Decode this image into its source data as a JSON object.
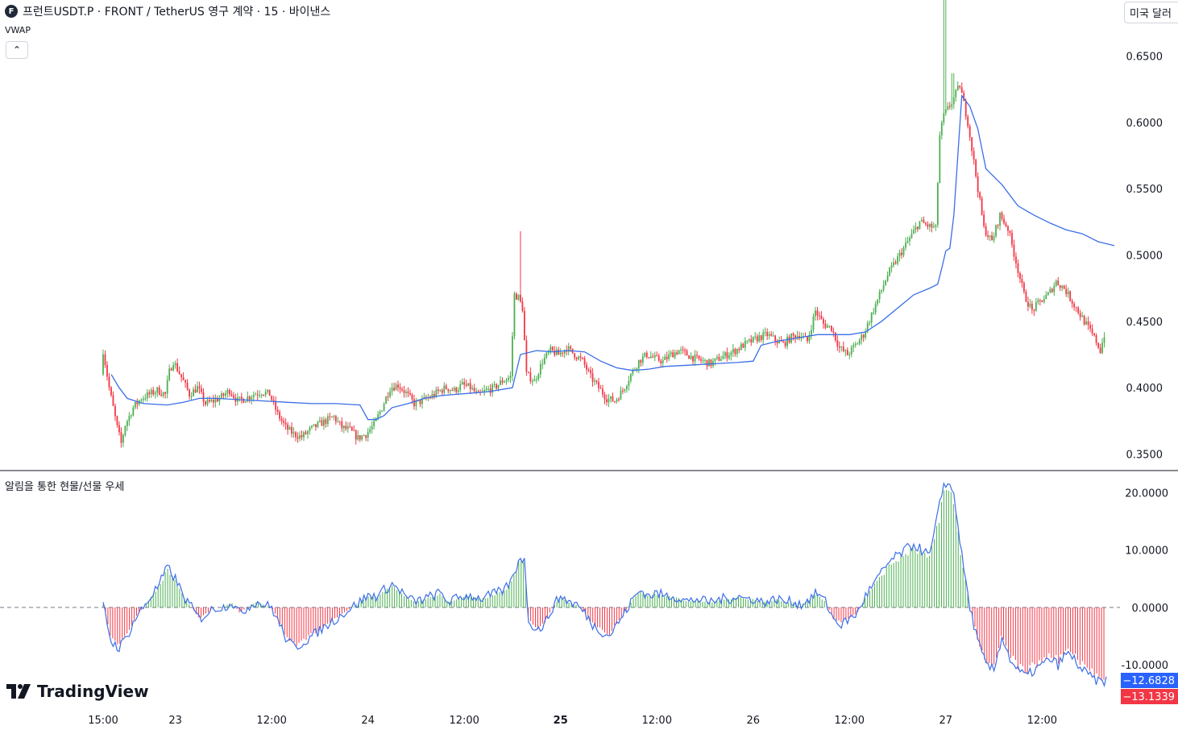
{
  "header": {
    "symbol_title": "프런트USDT.P · FRONT / TetherUS 영구 계약 · 15 · 바이낸스",
    "indicator": "VWAP",
    "currency_button": "미국 달러",
    "collapse_icon": "chevron-up-icon",
    "logo_icon": "front-coin-icon"
  },
  "pane2": {
    "title": "알림을 통한 현물/선물 우세"
  },
  "branding": {
    "logo_text": "TradingView"
  },
  "colors": {
    "up": "#4caf50",
    "down": "#f23645",
    "vwap": "#3b6ee8",
    "hist_up": "#4caf50",
    "hist_down": "#f23645",
    "badge_blue": "#2962ff",
    "badge_red": "#f23645"
  },
  "chart_data": [
    {
      "type": "candlestick",
      "title": "FRONTUSDT.P 15",
      "y_ticks": [
        "0.3500",
        "0.4000",
        "0.4500",
        "0.5000",
        "0.5500",
        "0.6000",
        "0.6500"
      ],
      "ylim": [
        0.34,
        0.68
      ],
      "x_ticks": [
        "15:00",
        "23",
        "12:00",
        "24",
        "12:00",
        "25",
        "12:00",
        "26",
        "12:00",
        "27",
        "12:00"
      ],
      "x_tick_times": [
        0,
        9,
        21,
        33,
        45,
        57,
        69,
        81,
        93,
        105,
        117
      ],
      "xlim": [
        0,
        122
      ],
      "price_path": [
        [
          0,
          0.41
        ],
        [
          0.2,
          0.43
        ],
        [
          1,
          0.4
        ],
        [
          2,
          0.37
        ],
        [
          2.5,
          0.358
        ],
        [
          3,
          0.372
        ],
        [
          4,
          0.385
        ],
        [
          5,
          0.392
        ],
        [
          6,
          0.395
        ],
        [
          7,
          0.398
        ],
        [
          8,
          0.395
        ],
        [
          8.5,
          0.412
        ],
        [
          9,
          0.42
        ],
        [
          10,
          0.408
        ],
        [
          11,
          0.395
        ],
        [
          12,
          0.4
        ],
        [
          13,
          0.388
        ],
        [
          14,
          0.39
        ],
        [
          15,
          0.393
        ],
        [
          16,
          0.398
        ],
        [
          17,
          0.39
        ],
        [
          18,
          0.392
        ],
        [
          19,
          0.395
        ],
        [
          20,
          0.397
        ],
        [
          21,
          0.395
        ],
        [
          22,
          0.38
        ],
        [
          23,
          0.37
        ],
        [
          24,
          0.365
        ],
        [
          25,
          0.363
        ],
        [
          26,
          0.368
        ],
        [
          27,
          0.372
        ],
        [
          28,
          0.375
        ],
        [
          29,
          0.378
        ],
        [
          30,
          0.37
        ],
        [
          31,
          0.368
        ],
        [
          32,
          0.362
        ],
        [
          33,
          0.365
        ],
        [
          34,
          0.372
        ],
        [
          35,
          0.385
        ],
        [
          36,
          0.4
        ],
        [
          37,
          0.402
        ],
        [
          38,
          0.396
        ],
        [
          39,
          0.388
        ],
        [
          40,
          0.39
        ],
        [
          41,
          0.393
        ],
        [
          42,
          0.397
        ],
        [
          43,
          0.4
        ],
        [
          44,
          0.398
        ],
        [
          45,
          0.402
        ],
        [
          46,
          0.4
        ],
        [
          47,
          0.394
        ],
        [
          48,
          0.398
        ],
        [
          49,
          0.4
        ],
        [
          50,
          0.405
        ],
        [
          51,
          0.408
        ],
        [
          51.5,
          0.47
        ],
        [
          52,
          0.468
        ],
        [
          52.5,
          0.46
        ],
        [
          53,
          0.41
        ],
        [
          54,
          0.405
        ],
        [
          55,
          0.42
        ],
        [
          56,
          0.428
        ],
        [
          57,
          0.425
        ],
        [
          58,
          0.43
        ],
        [
          59,
          0.425
        ],
        [
          60,
          0.42
        ],
        [
          61,
          0.408
        ],
        [
          62,
          0.4
        ],
        [
          63,
          0.392
        ],
        [
          64,
          0.39
        ],
        [
          65,
          0.398
        ],
        [
          66,
          0.41
        ],
        [
          67,
          0.42
        ],
        [
          68,
          0.425
        ],
        [
          69,
          0.422
        ],
        [
          70,
          0.42
        ],
        [
          71,
          0.425
        ],
        [
          72,
          0.428
        ],
        [
          73,
          0.425
        ],
        [
          74,
          0.422
        ],
        [
          75,
          0.42
        ],
        [
          76,
          0.418
        ],
        [
          77,
          0.422
        ],
        [
          78,
          0.425
        ],
        [
          79,
          0.428
        ],
        [
          80,
          0.432
        ],
        [
          81,
          0.435
        ],
        [
          82,
          0.438
        ],
        [
          83,
          0.44
        ],
        [
          84,
          0.436
        ],
        [
          85,
          0.433
        ],
        [
          86,
          0.438
        ],
        [
          87,
          0.44
        ],
        [
          88,
          0.435
        ],
        [
          89,
          0.458
        ],
        [
          90,
          0.448
        ],
        [
          91,
          0.445
        ],
        [
          92,
          0.43
        ],
        [
          93,
          0.425
        ],
        [
          94,
          0.432
        ],
        [
          95,
          0.44
        ],
        [
          96,
          0.455
        ],
        [
          97,
          0.47
        ],
        [
          98,
          0.485
        ],
        [
          99,
          0.495
        ],
        [
          100,
          0.505
        ],
        [
          101,
          0.515
        ],
        [
          102,
          0.525
        ],
        [
          103,
          0.522
        ],
        [
          104,
          0.52
        ],
        [
          104.5,
          0.59
        ],
        [
          105,
          0.605
        ],
        [
          106,
          0.615
        ],
        [
          107,
          0.628
        ],
        [
          108,
          0.6
        ],
        [
          109,
          0.56
        ],
        [
          110,
          0.52
        ],
        [
          111,
          0.51
        ],
        [
          112,
          0.53
        ],
        [
          113,
          0.52
        ],
        [
          114,
          0.495
        ],
        [
          115,
          0.47
        ],
        [
          116,
          0.458
        ],
        [
          117,
          0.465
        ],
        [
          118,
          0.47
        ],
        [
          119,
          0.48
        ],
        [
          120,
          0.475
        ],
        [
          121,
          0.465
        ],
        [
          122,
          0.455
        ],
        [
          123,
          0.445
        ],
        [
          124,
          0.435
        ],
        [
          124.5,
          0.428
        ],
        [
          125,
          0.44
        ]
      ],
      "spikes": [
        {
          "t": 52,
          "high": 0.518
        },
        {
          "t": 104.8,
          "high": 0.701
        },
        {
          "t": 105.8,
          "high": 0.637
        }
      ],
      "series": [
        {
          "name": "VWAP",
          "points": [
            [
              1,
              0.41
            ],
            [
              2,
              0.4
            ],
            [
              3,
              0.392
            ],
            [
              5,
              0.388
            ],
            [
              8,
              0.387
            ],
            [
              10,
              0.389
            ],
            [
              12,
              0.392
            ],
            [
              14,
              0.392
            ],
            [
              17,
              0.391
            ],
            [
              20,
              0.39
            ],
            [
              23,
              0.389
            ],
            [
              26,
              0.388
            ],
            [
              29,
              0.388
            ],
            [
              32,
              0.387
            ],
            [
              33,
              0.376
            ],
            [
              34,
              0.376
            ],
            [
              35,
              0.379
            ],
            [
              36,
              0.385
            ],
            [
              38,
              0.388
            ],
            [
              40,
              0.392
            ],
            [
              42,
              0.394
            ],
            [
              44,
              0.395
            ],
            [
              46,
              0.396
            ],
            [
              48,
              0.397
            ],
            [
              50,
              0.399
            ],
            [
              51,
              0.4
            ],
            [
              52,
              0.425
            ],
            [
              54,
              0.428
            ],
            [
              56,
              0.427
            ],
            [
              58,
              0.428
            ],
            [
              60,
              0.427
            ],
            [
              62,
              0.42
            ],
            [
              64,
              0.415
            ],
            [
              66,
              0.413
            ],
            [
              68,
              0.414
            ],
            [
              70,
              0.416
            ],
            [
              73,
              0.417
            ],
            [
              76,
              0.418
            ],
            [
              79,
              0.419
            ],
            [
              81,
              0.42
            ],
            [
              82,
              0.432
            ],
            [
              84,
              0.435
            ],
            [
              87,
              0.438
            ],
            [
              89,
              0.44
            ],
            [
              92,
              0.44
            ],
            [
              93,
              0.44
            ],
            [
              95,
              0.442
            ],
            [
              97,
              0.45
            ],
            [
              99,
              0.46
            ],
            [
              101,
              0.47
            ],
            [
              103,
              0.475
            ],
            [
              104,
              0.478
            ],
            [
              104.5,
              0.49
            ],
            [
              105,
              0.503
            ],
            [
              105.5,
              0.505
            ],
            [
              106,
              0.53
            ],
            [
              107,
              0.62
            ],
            [
              108,
              0.612
            ],
            [
              109,
              0.595
            ],
            [
              110,
              0.565
            ],
            [
              112,
              0.553
            ],
            [
              114,
              0.537
            ],
            [
              116,
              0.53
            ],
            [
              118,
              0.524
            ],
            [
              120,
              0.519
            ],
            [
              122,
              0.516
            ],
            [
              124,
              0.51
            ],
            [
              126,
              0.507
            ]
          ]
        }
      ]
    },
    {
      "type": "histogram",
      "title": "알림을 통한 현물/선물 우세",
      "y_ticks": [
        "20.0000",
        "10.0000",
        "0.0000",
        "-10.0000"
      ],
      "ylim": [
        -17,
        23
      ],
      "zero_line": 0,
      "path": [
        [
          0,
          0.5
        ],
        [
          1,
          -6
        ],
        [
          2,
          -7
        ],
        [
          3,
          -5
        ],
        [
          4,
          -2
        ],
        [
          5,
          0
        ],
        [
          6,
          2
        ],
        [
          7,
          4
        ],
        [
          8,
          7
        ],
        [
          9,
          5
        ],
        [
          10,
          2
        ],
        [
          11,
          0
        ],
        [
          12,
          -2
        ],
        [
          13,
          -1
        ],
        [
          14,
          0
        ],
        [
          15,
          0
        ],
        [
          16,
          1
        ],
        [
          17,
          -1
        ],
        [
          18,
          0
        ],
        [
          19,
          1
        ],
        [
          20,
          0.5
        ],
        [
          21,
          0
        ],
        [
          22,
          -3
        ],
        [
          23,
          -6
        ],
        [
          24,
          -7
        ],
        [
          25,
          -6
        ],
        [
          26,
          -5
        ],
        [
          27,
          -4
        ],
        [
          28,
          -3
        ],
        [
          29,
          -2
        ],
        [
          30,
          -1
        ],
        [
          31,
          0
        ],
        [
          32,
          1
        ],
        [
          33,
          2
        ],
        [
          34,
          2
        ],
        [
          35,
          3
        ],
        [
          36,
          4
        ],
        [
          37,
          3
        ],
        [
          38,
          1.5
        ],
        [
          39,
          1
        ],
        [
          40,
          1.5
        ],
        [
          41,
          2
        ],
        [
          42,
          2.5
        ],
        [
          43,
          1
        ],
        [
          44,
          1.5
        ],
        [
          45,
          2
        ],
        [
          46,
          2
        ],
        [
          47,
          1.5
        ],
        [
          48,
          2
        ],
        [
          49,
          2.5
        ],
        [
          50,
          3
        ],
        [
          51,
          5
        ],
        [
          52,
          9
        ],
        [
          52.5,
          8
        ],
        [
          53,
          -2
        ],
        [
          54,
          -4
        ],
        [
          55,
          -3
        ],
        [
          56,
          0
        ],
        [
          57,
          2
        ],
        [
          58,
          1
        ],
        [
          59,
          0.5
        ],
        [
          60,
          -1
        ],
        [
          61,
          -3
        ],
        [
          62,
          -4
        ],
        [
          63,
          -5
        ],
        [
          64,
          -3
        ],
        [
          65,
          -1
        ],
        [
          66,
          1.5
        ],
        [
          67,
          3
        ],
        [
          68,
          2
        ],
        [
          69,
          2.5
        ],
        [
          70,
          2
        ],
        [
          71,
          2
        ],
        [
          72,
          1.5
        ],
        [
          73,
          1
        ],
        [
          74,
          1.5
        ],
        [
          75,
          1
        ],
        [
          76,
          1
        ],
        [
          77,
          1.5
        ],
        [
          78,
          1.5
        ],
        [
          79,
          2
        ],
        [
          80,
          1.5
        ],
        [
          81,
          1.5
        ],
        [
          82,
          1
        ],
        [
          83,
          1
        ],
        [
          84,
          1.5
        ],
        [
          85,
          1
        ],
        [
          86,
          1
        ],
        [
          87,
          0.5
        ],
        [
          88,
          1.5
        ],
        [
          89,
          2.5
        ],
        [
          90,
          1
        ],
        [
          91,
          -2
        ],
        [
          92,
          -3
        ],
        [
          93,
          -2
        ],
        [
          94,
          -1
        ],
        [
          95,
          2
        ],
        [
          96,
          4
        ],
        [
          97,
          6
        ],
        [
          98,
          8
        ],
        [
          99,
          9
        ],
        [
          100,
          10
        ],
        [
          101,
          11
        ],
        [
          102,
          10
        ],
        [
          103,
          9
        ],
        [
          104,
          16
        ],
        [
          104.8,
          22
        ],
        [
          105.5,
          21
        ],
        [
          106,
          20
        ],
        [
          107,
          9
        ],
        [
          108,
          0
        ],
        [
          109,
          -6
        ],
        [
          110,
          -10
        ],
        [
          111,
          -11
        ],
        [
          112,
          -5
        ],
        [
          113,
          -9
        ],
        [
          114,
          -11
        ],
        [
          115,
          -12
        ],
        [
          116,
          -11
        ],
        [
          117,
          -10
        ],
        [
          118,
          -9
        ],
        [
          119,
          -10
        ],
        [
          120,
          -8
        ],
        [
          121,
          -9
        ],
        [
          122,
          -11
        ],
        [
          123,
          -12
        ],
        [
          124,
          -13
        ],
        [
          125,
          -12.7
        ]
      ],
      "last_values": {
        "line": "−12.6828",
        "hist": "−13.1339"
      }
    }
  ]
}
